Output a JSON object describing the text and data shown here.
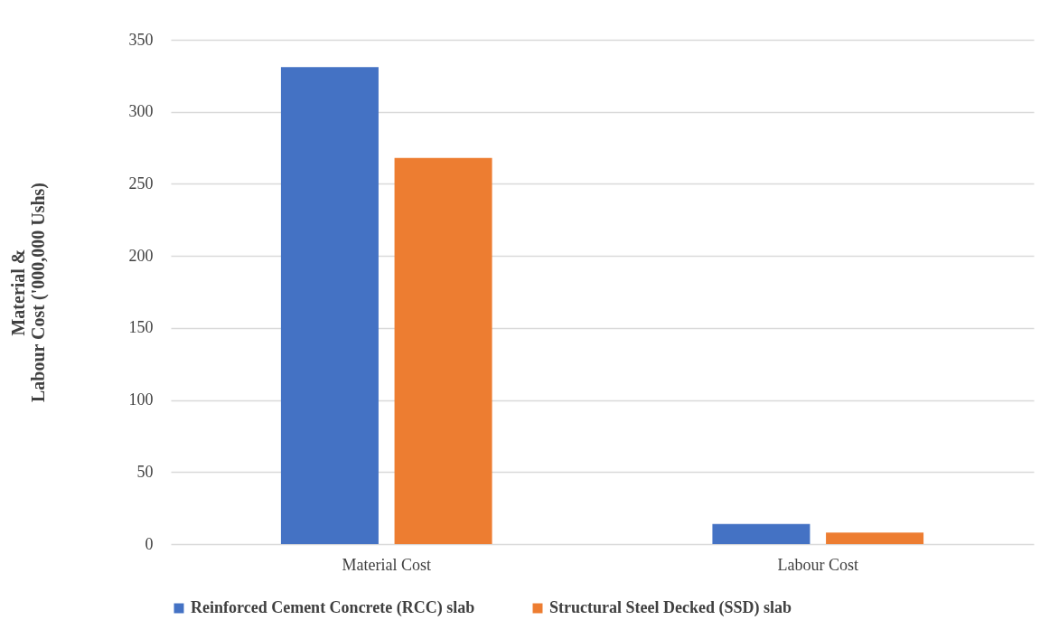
{
  "chart_data": {
    "type": "bar",
    "ylabel": "Material &\nLabour Cost ('000,000 Ushs)",
    "categories": [
      "Material Cost",
      "Labour Cost"
    ],
    "series": [
      {
        "name": "Reinforced Cement Concrete (RCC) slab",
        "color": "#4472c4",
        "values": [
          331,
          14
        ]
      },
      {
        "name": "Structural Steel Decked (SSD) slab",
        "color": "#ed7d31",
        "values": [
          268,
          8
        ]
      }
    ],
    "ylim": [
      0,
      350
    ],
    "yticks": [
      0,
      50,
      100,
      150,
      200,
      250,
      300,
      350
    ],
    "grid": "y",
    "legend": "bottom"
  }
}
